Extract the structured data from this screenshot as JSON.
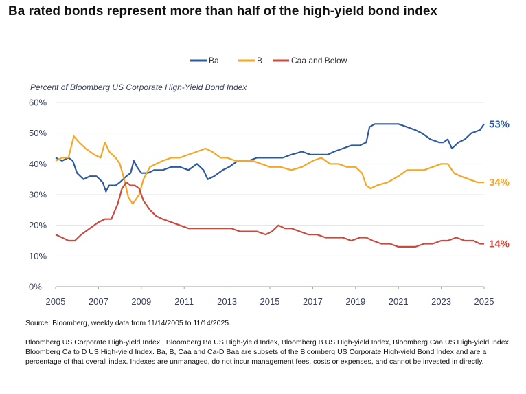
{
  "title": "Ba rated bonds represent more than half of the high-yield bond index",
  "source": "Source: Bloomberg, weekly data from 11/14/2005 to 11/14/2025.",
  "footnote": "Bloomberg US Corporate High-yield Index , Bloomberg Ba US High-yield Index, Bloomberg B US High-yield Index, Bloomberg Caa US High-yield Index, Bloomberg Ca to D US High-yield Index.  Ba, B, Caa and Ca-D Baa are subsets of the Bloomberg US Corporate High-yield Bond Index and are a percentage of that overall index. Indexes are unmanaged, do not incur management fees, costs or expenses, and cannot be invested in directly.",
  "chart_data": {
    "type": "line",
    "title": "Ba rated bonds represent more than half of the high-yield bond index",
    "ylabel": "Percent of Bloomberg US Corporate High-Yield Bond Index",
    "xlabel": "",
    "xlim": [
      2005,
      2025
    ],
    "ylim": [
      0,
      60
    ],
    "x_ticks": [
      "2005",
      "2007",
      "2009",
      "2011",
      "2013",
      "2015",
      "2017",
      "2019",
      "2021",
      "2023",
      "2025"
    ],
    "y_ticks": [
      "0%",
      "10%",
      "20%",
      "30%",
      "40%",
      "50%",
      "60%"
    ],
    "grid": "horizontal",
    "legend_position": "top-center",
    "series": [
      {
        "name": "Ba",
        "color": "#2f5b9e",
        "end_label": "53%",
        "points": [
          [
            2005.0,
            42
          ],
          [
            2005.3,
            41
          ],
          [
            2005.6,
            42
          ],
          [
            2005.8,
            41
          ],
          [
            2006.0,
            37
          ],
          [
            2006.3,
            35
          ],
          [
            2006.6,
            36
          ],
          [
            2006.9,
            36
          ],
          [
            2007.2,
            34
          ],
          [
            2007.35,
            31
          ],
          [
            2007.5,
            33
          ],
          [
            2007.8,
            33
          ],
          [
            2008.0,
            34
          ],
          [
            2008.3,
            36
          ],
          [
            2008.5,
            37
          ],
          [
            2008.65,
            41
          ],
          [
            2008.8,
            39
          ],
          [
            2009.0,
            37
          ],
          [
            2009.3,
            37
          ],
          [
            2009.6,
            38
          ],
          [
            2010.0,
            38
          ],
          [
            2010.4,
            39
          ],
          [
            2010.8,
            39
          ],
          [
            2011.2,
            38
          ],
          [
            2011.6,
            40
          ],
          [
            2011.9,
            38
          ],
          [
            2012.1,
            35
          ],
          [
            2012.4,
            36
          ],
          [
            2012.8,
            38
          ],
          [
            2013.1,
            39
          ],
          [
            2013.5,
            41
          ],
          [
            2014.0,
            41
          ],
          [
            2014.4,
            42
          ],
          [
            2014.8,
            42
          ],
          [
            2015.2,
            42
          ],
          [
            2015.6,
            42
          ],
          [
            2016.0,
            43
          ],
          [
            2016.5,
            44
          ],
          [
            2016.9,
            43
          ],
          [
            2017.3,
            43
          ],
          [
            2017.7,
            43
          ],
          [
            2018.0,
            44
          ],
          [
            2018.4,
            45
          ],
          [
            2018.8,
            46
          ],
          [
            2019.2,
            46
          ],
          [
            2019.5,
            47
          ],
          [
            2019.65,
            52
          ],
          [
            2019.9,
            53
          ],
          [
            2020.3,
            53
          ],
          [
            2020.7,
            53
          ],
          [
            2021.0,
            53
          ],
          [
            2021.4,
            52
          ],
          [
            2021.8,
            51
          ],
          [
            2022.1,
            50
          ],
          [
            2022.5,
            48
          ],
          [
            2022.9,
            47
          ],
          [
            2023.1,
            47
          ],
          [
            2023.3,
            48
          ],
          [
            2023.5,
            45
          ],
          [
            2023.8,
            47
          ],
          [
            2024.1,
            48
          ],
          [
            2024.4,
            50
          ],
          [
            2024.8,
            51
          ],
          [
            2025.0,
            53
          ]
        ]
      },
      {
        "name": "B",
        "color": "#f5a623",
        "end_label": "34%",
        "points": [
          [
            2005.0,
            41
          ],
          [
            2005.3,
            42
          ],
          [
            2005.6,
            42
          ],
          [
            2005.85,
            49
          ],
          [
            2006.1,
            47
          ],
          [
            2006.4,
            45
          ],
          [
            2006.8,
            43
          ],
          [
            2007.1,
            42
          ],
          [
            2007.3,
            47
          ],
          [
            2007.5,
            44
          ],
          [
            2007.8,
            42
          ],
          [
            2008.0,
            40
          ],
          [
            2008.2,
            35
          ],
          [
            2008.4,
            29
          ],
          [
            2008.6,
            27
          ],
          [
            2008.9,
            30
          ],
          [
            2009.1,
            35
          ],
          [
            2009.4,
            39
          ],
          [
            2009.7,
            40
          ],
          [
            2010.0,
            41
          ],
          [
            2010.4,
            42
          ],
          [
            2010.8,
            42
          ],
          [
            2011.2,
            43
          ],
          [
            2011.6,
            44
          ],
          [
            2012.0,
            45
          ],
          [
            2012.3,
            44
          ],
          [
            2012.7,
            42
          ],
          [
            2013.0,
            42
          ],
          [
            2013.4,
            41
          ],
          [
            2013.8,
            41
          ],
          [
            2014.2,
            41
          ],
          [
            2014.6,
            40
          ],
          [
            2015.0,
            39
          ],
          [
            2015.5,
            39
          ],
          [
            2016.0,
            38
          ],
          [
            2016.5,
            39
          ],
          [
            2017.0,
            41
          ],
          [
            2017.4,
            42
          ],
          [
            2017.8,
            40
          ],
          [
            2018.2,
            40
          ],
          [
            2018.6,
            39
          ],
          [
            2019.0,
            39
          ],
          [
            2019.3,
            37
          ],
          [
            2019.5,
            33
          ],
          [
            2019.7,
            32
          ],
          [
            2020.0,
            33
          ],
          [
            2020.5,
            34
          ],
          [
            2021.0,
            36
          ],
          [
            2021.4,
            38
          ],
          [
            2021.8,
            38
          ],
          [
            2022.2,
            38
          ],
          [
            2022.6,
            39
          ],
          [
            2023.0,
            40
          ],
          [
            2023.3,
            40
          ],
          [
            2023.6,
            37
          ],
          [
            2023.9,
            36
          ],
          [
            2024.3,
            35
          ],
          [
            2024.7,
            34
          ],
          [
            2025.0,
            34
          ]
        ]
      },
      {
        "name": "Caa and Below",
        "color": "#c94a3e",
        "end_label": "14%",
        "points": [
          [
            2005.0,
            17
          ],
          [
            2005.3,
            16
          ],
          [
            2005.6,
            15
          ],
          [
            2005.9,
            15
          ],
          [
            2006.2,
            17
          ],
          [
            2006.6,
            19
          ],
          [
            2007.0,
            21
          ],
          [
            2007.3,
            22
          ],
          [
            2007.6,
            22
          ],
          [
            2007.9,
            27
          ],
          [
            2008.1,
            32
          ],
          [
            2008.3,
            34
          ],
          [
            2008.5,
            33
          ],
          [
            2008.7,
            33
          ],
          [
            2008.9,
            32
          ],
          [
            2009.1,
            28
          ],
          [
            2009.4,
            25
          ],
          [
            2009.7,
            23
          ],
          [
            2010.0,
            22
          ],
          [
            2010.4,
            21
          ],
          [
            2010.8,
            20
          ],
          [
            2011.2,
            19
          ],
          [
            2011.6,
            19
          ],
          [
            2012.0,
            19
          ],
          [
            2012.4,
            19
          ],
          [
            2012.8,
            19
          ],
          [
            2013.2,
            19
          ],
          [
            2013.6,
            18
          ],
          [
            2014.0,
            18
          ],
          [
            2014.4,
            18
          ],
          [
            2014.8,
            17
          ],
          [
            2015.1,
            18
          ],
          [
            2015.4,
            20
          ],
          [
            2015.7,
            19
          ],
          [
            2016.0,
            19
          ],
          [
            2016.4,
            18
          ],
          [
            2016.8,
            17
          ],
          [
            2017.2,
            17
          ],
          [
            2017.6,
            16
          ],
          [
            2018.0,
            16
          ],
          [
            2018.4,
            16
          ],
          [
            2018.8,
            15
          ],
          [
            2019.2,
            16
          ],
          [
            2019.5,
            16
          ],
          [
            2019.8,
            15
          ],
          [
            2020.2,
            14
          ],
          [
            2020.6,
            14
          ],
          [
            2021.0,
            13
          ],
          [
            2021.4,
            13
          ],
          [
            2021.8,
            13
          ],
          [
            2022.2,
            14
          ],
          [
            2022.6,
            14
          ],
          [
            2023.0,
            15
          ],
          [
            2023.3,
            15
          ],
          [
            2023.7,
            16
          ],
          [
            2024.1,
            15
          ],
          [
            2024.5,
            15
          ],
          [
            2024.8,
            14
          ],
          [
            2025.0,
            14
          ]
        ]
      }
    ]
  }
}
